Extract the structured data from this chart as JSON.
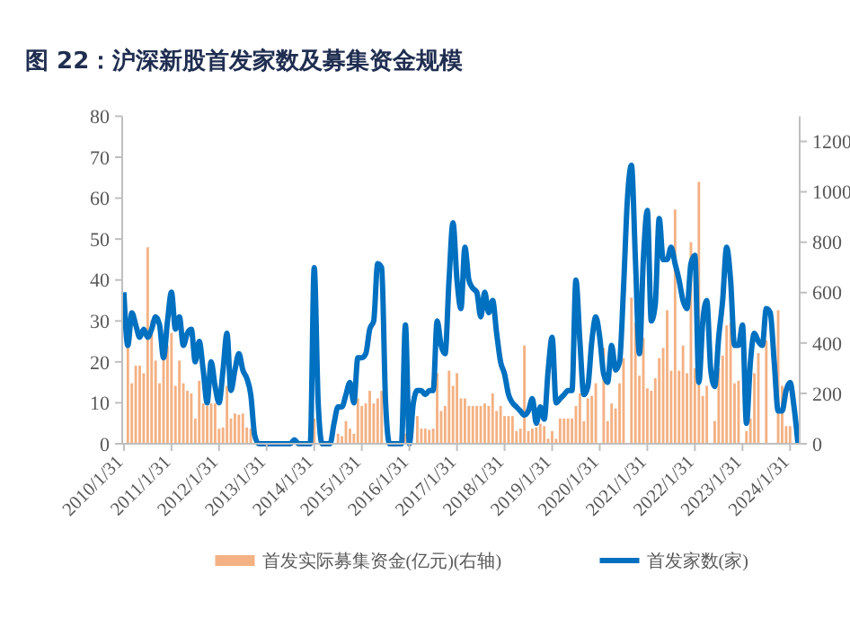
{
  "chart_data": {
    "type": "bar",
    "title": "图 22：沪深新股首发家数及募集资金规模",
    "categories": [
      "2010/1/31",
      null,
      null,
      null,
      null,
      null,
      null,
      null,
      null,
      null,
      null,
      null,
      "2011/1/31",
      null,
      null,
      null,
      null,
      null,
      null,
      null,
      null,
      null,
      null,
      null,
      "2012/1/31",
      null,
      null,
      null,
      null,
      null,
      null,
      null,
      null,
      null,
      null,
      null,
      "2013/1/31",
      null,
      null,
      null,
      null,
      null,
      null,
      null,
      null,
      null,
      null,
      null,
      "2014/1/31",
      null,
      null,
      null,
      null,
      null,
      null,
      null,
      null,
      null,
      null,
      null,
      "2015/1/31",
      null,
      null,
      null,
      null,
      null,
      null,
      null,
      null,
      null,
      null,
      null,
      "2016/1/31",
      null,
      null,
      null,
      null,
      null,
      null,
      null,
      null,
      null,
      null,
      null,
      "2017/1/31",
      null,
      null,
      null,
      null,
      null,
      null,
      null,
      null,
      null,
      null,
      null,
      "2018/1/31",
      null,
      null,
      null,
      null,
      null,
      null,
      null,
      null,
      null,
      null,
      null,
      "2019/1/31",
      null,
      null,
      null,
      null,
      null,
      null,
      null,
      null,
      null,
      null,
      null,
      "2020/1/31",
      null,
      null,
      null,
      null,
      null,
      null,
      null,
      null,
      null,
      null,
      null,
      "2021/1/31",
      null,
      null,
      null,
      null,
      null,
      null,
      null,
      null,
      null,
      null,
      null,
      "2022/1/31",
      null,
      null,
      null,
      null,
      null,
      null,
      null,
      null,
      null,
      null,
      null,
      "2023/1/31",
      null,
      null,
      null,
      null,
      null,
      null,
      null,
      null,
      null,
      null,
      null,
      "2024/1/31",
      null,
      null
    ],
    "series": [
      {
        "name": "首发实际募集资金(亿元)(右轴)",
        "axis": "y2",
        "color": "#f4b183",
        "values": [
          null,
          390,
          240,
          310,
          310,
          280,
          780,
          490,
          330,
          240,
          340,
          390,
          440,
          230,
          330,
          240,
          210,
          200,
          100,
          250,
          160,
          150,
          160,
          160,
          60,
          65,
          230,
          100,
          120,
          115,
          120,
          65,
          60,
          null,
          0,
          0,
          0,
          0,
          0,
          0,
          0,
          0,
          0,
          0,
          0,
          0,
          0,
          0,
          100,
          null,
          0,
          0,
          0,
          0,
          40,
          30,
          90,
          60,
          40,
          180,
          150,
          160,
          210,
          160,
          180,
          210,
          0,
          0,
          0,
          0,
          0,
          40,
          0,
          null,
          110,
          60,
          60,
          55,
          60,
          280,
          130,
          150,
          290,
          230,
          280,
          180,
          180,
          150,
          150,
          150,
          150,
          160,
          150,
          200,
          130,
          150,
          110,
          110,
          110,
          50,
          60,
          390,
          50,
          60,
          65,
          80,
          70,
          20,
          50,
          20,
          100,
          100,
          100,
          100,
          150,
          200,
          90,
          180,
          190,
          240,
          null,
          380,
          90,
          160,
          140,
          240,
          340,
          null,
          580,
          480,
          270,
          420,
          220,
          210,
          260,
          340,
          380,
          530,
          290,
          930,
          290,
          390,
          280,
          800,
          300,
          1040,
          190,
          230,
          null,
          90,
          300,
          350,
          470,
          480,
          240,
          250,
          null,
          50,
          100,
          280,
          360,
          null,
          410,
          null,
          null,
          530,
          230,
          70,
          70,
          null,
          0
        ]
      },
      {
        "name": "首发家数(家)",
        "type": "line",
        "color": "#0070c0",
        "values": [
          37,
          24,
          32,
          29,
          26,
          28,
          26,
          28,
          31,
          29,
          21,
          30,
          37,
          28,
          31,
          24,
          27,
          28,
          20,
          25,
          18,
          10,
          20,
          14,
          10,
          18,
          27,
          13,
          18,
          22,
          18,
          16,
          12,
          2,
          0,
          0,
          0,
          0,
          0,
          0,
          0,
          0,
          0,
          1,
          0,
          0,
          0,
          0,
          43,
          10,
          0,
          0,
          0,
          5,
          9,
          9,
          12,
          15,
          10,
          21,
          21,
          22,
          28,
          30,
          44,
          43,
          10,
          0,
          0,
          0,
          0,
          29,
          0,
          10,
          13,
          13,
          12,
          13,
          13,
          30,
          24,
          22,
          40,
          54,
          40,
          33,
          48,
          40,
          38,
          37,
          31,
          37,
          32,
          35,
          27,
          20,
          17,
          12,
          10,
          9,
          8,
          7,
          8,
          11,
          5,
          9,
          6,
          18,
          26,
          10,
          11,
          12,
          13,
          13,
          40,
          25,
          12,
          14,
          25,
          31,
          26,
          17,
          15,
          24,
          18,
          20,
          38,
          60,
          68,
          45,
          22,
          45,
          57,
          30,
          34,
          55,
          45,
          45,
          48,
          44,
          40,
          35,
          33,
          44,
          46,
          15,
          30,
          35,
          18,
          14,
          26,
          35,
          48,
          40,
          24,
          24,
          29,
          5,
          20,
          27,
          25,
          24,
          33,
          32,
          20,
          8,
          8,
          13,
          15,
          9,
          0
        ]
      }
    ],
    "ylim": [
      0,
      80
    ],
    "yticks": [
      0,
      10,
      20,
      30,
      40,
      50,
      60,
      70,
      80
    ],
    "y2lim": [
      0,
      1300
    ],
    "y2ticks": [
      0,
      200,
      400,
      600,
      800,
      1000,
      1200
    ],
    "legend": "bottom"
  }
}
